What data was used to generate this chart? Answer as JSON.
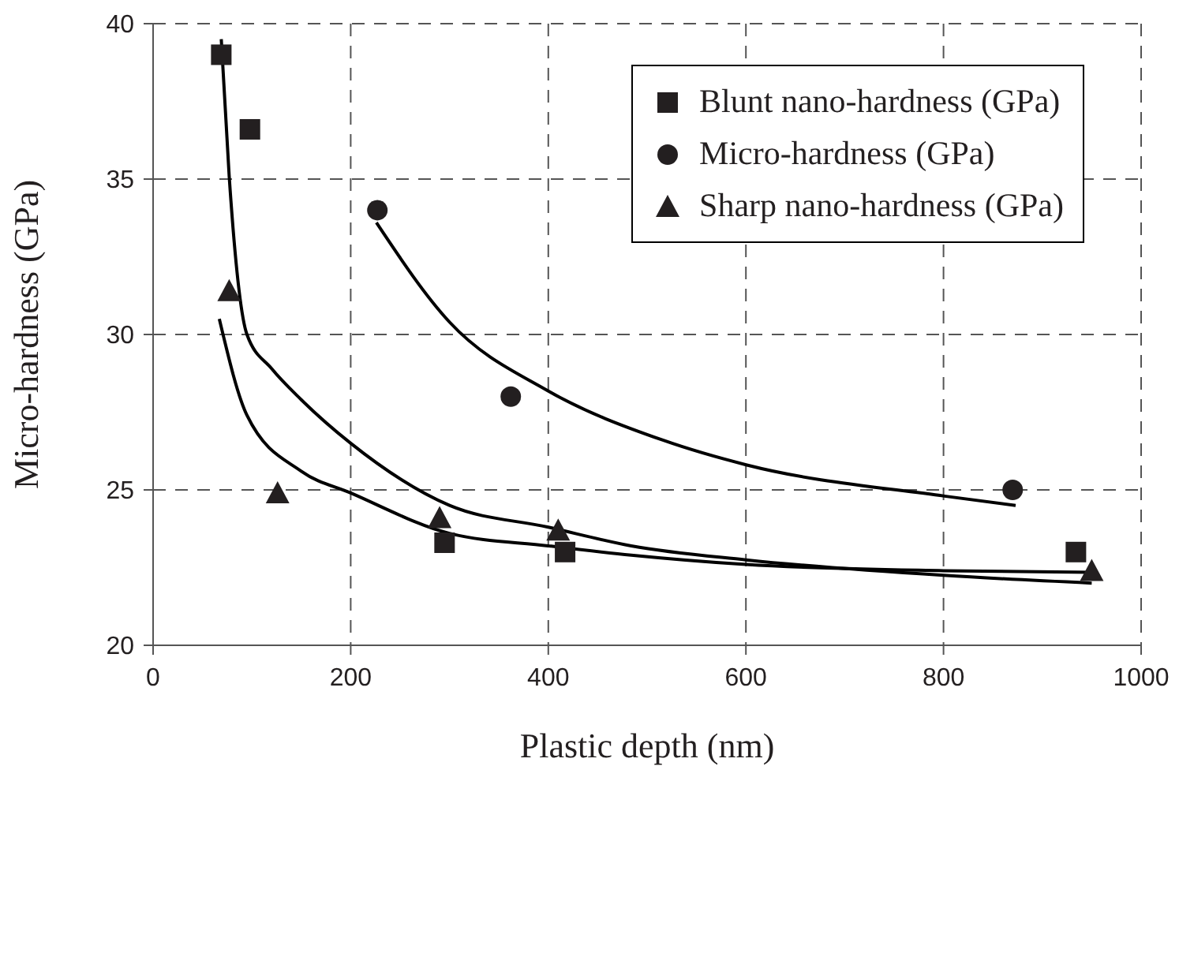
{
  "chart_data": {
    "type": "scatter",
    "xlabel": "Plastic depth (nm)",
    "ylabel": "Micro-hardness (GPa)",
    "xlim": [
      0,
      1000
    ],
    "xticks": [
      0,
      200,
      400,
      600,
      800,
      1000
    ],
    "ylim": [
      20,
      40
    ],
    "yticks": [
      20,
      25,
      30,
      35,
      40
    ],
    "grid": true,
    "legend": "top right",
    "series": [
      {
        "name": "Blunt nano-hardness (GPa)",
        "marker": "square",
        "color": "#231f20",
        "x": [
          69,
          98,
          295,
          417,
          934
        ],
        "values": [
          39.0,
          36.6,
          23.3,
          23.0,
          23.0
        ]
      },
      {
        "name": "Micro-hardness (GPa)",
        "marker": "circle",
        "color": "#231f20",
        "x": [
          227,
          362,
          870
        ],
        "values": [
          34.0,
          28.0,
          25.0
        ]
      },
      {
        "name": "Sharp nano-hardness (GPa)",
        "marker": "triangle",
        "color": "#231f20",
        "x": [
          77,
          126,
          290,
          410,
          950
        ],
        "values": [
          31.4,
          24.9,
          24.1,
          23.7,
          22.4
        ]
      },
      {
        "type": "line",
        "marker": "none",
        "line_style": "solid",
        "color": "#000000",
        "x": [
          69,
          77,
          95,
          120,
          150,
          200,
          300,
          400,
          484,
          600,
          800,
          950
        ],
        "values": [
          39.5,
          35.1,
          30.0,
          28.9,
          27.9,
          26.5,
          24.5,
          23.8,
          23.2,
          22.75,
          22.25,
          22.0
        ]
      },
      {
        "type": "line",
        "marker": "none",
        "line_style": "solid",
        "color": "#000000",
        "x": [
          226,
          300,
          399,
          516,
          601,
          801,
          873
        ],
        "values": [
          33.6,
          30.4,
          28.2,
          26.6,
          25.8,
          24.8,
          24.5
        ]
      },
      {
        "type": "line",
        "marker": "none",
        "line_style": "solid",
        "color": "#000000",
        "x": [
          67,
          95,
          150,
          200,
          300,
          400,
          484,
          600,
          800,
          950
        ],
        "values": [
          30.5,
          27.4,
          25.6,
          24.9,
          23.6,
          23.2,
          22.9,
          22.6,
          22.4,
          22.35
        ]
      }
    ]
  }
}
